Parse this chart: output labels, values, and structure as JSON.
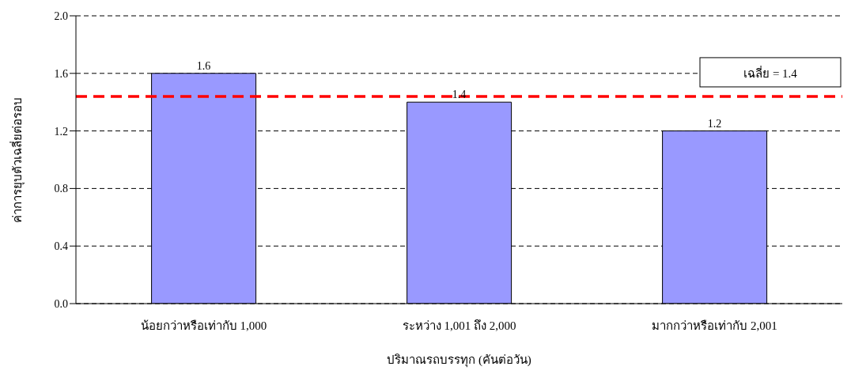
{
  "chart_data": {
    "type": "bar",
    "xlabel": "ปริมาณรถบรรทุก (คันต่อวัน)",
    "ylabel": "ค่าการยุบตัวเฉลี่ยต่อรอบ",
    "categories": [
      "น้อยกว่าหรือเท่ากับ 1,000",
      "ระหว่าง 1,001 ถึง 2,000",
      "มากกว่าหรือเท่ากับ 2,001"
    ],
    "values": [
      1.6,
      1.4,
      1.2
    ],
    "color": "#9999ff",
    "data_labels": true,
    "ylim": [
      0,
      2
    ],
    "yticks": [
      {
        "value": 0,
        "label": "0.0"
      },
      {
        "value": 0.4,
        "label": "0.4"
      },
      {
        "value": 0.8,
        "label": "0.8"
      },
      {
        "value": 1.2,
        "label": "1.2"
      },
      {
        "value": 1.6,
        "label": "1.6"
      },
      {
        "value": 2,
        "label": "2.0"
      }
    ],
    "grid": "y",
    "ref_lines": [
      {
        "axis": "y",
        "value": 1.44,
        "label": "เฉลี่ย = 1.4",
        "color": "#ff0000",
        "line_style": "dashed"
      }
    ]
  }
}
